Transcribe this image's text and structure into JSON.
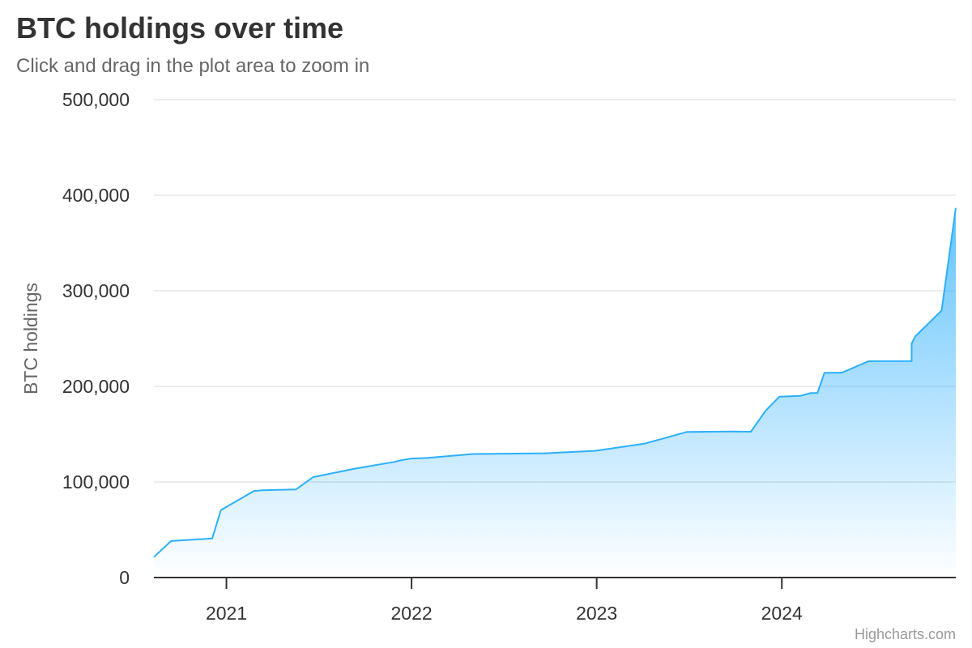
{
  "chart_data": {
    "type": "area",
    "title": "BTC holdings over time",
    "subtitle": "Click and drag in the plot area to zoom in",
    "xlabel": "",
    "ylabel": "BTC holdings",
    "x_axis_type": "datetime",
    "xlim": [
      "2020-08-11",
      "2024-12-09"
    ],
    "ylim": [
      0,
      500000
    ],
    "y_ticks": [
      0,
      100000,
      200000,
      300000,
      400000,
      500000
    ],
    "y_tick_labels": [
      "0",
      "100,000",
      "200,000",
      "300,000",
      "400,000",
      "500,000"
    ],
    "x_ticks": [
      "2021-01-01",
      "2022-01-01",
      "2023-01-01",
      "2024-01-01"
    ],
    "x_tick_labels": [
      "2021",
      "2022",
      "2023",
      "2024"
    ],
    "grid": true,
    "legend": false,
    "series_color": "#2caffe",
    "series": [
      {
        "values": [
          [
            "2020-08-11",
            21454
          ],
          [
            "2020-09-14",
            38250
          ],
          [
            "2020-12-04",
            40824
          ],
          [
            "2020-12-21",
            70470
          ],
          [
            "2021-02-24",
            90531
          ],
          [
            "2021-03-12",
            91326
          ],
          [
            "2021-05-18",
            92079
          ],
          [
            "2021-06-21",
            105085
          ],
          [
            "2021-09-13",
            114042
          ],
          [
            "2021-11-29",
            121044
          ],
          [
            "2021-12-09",
            122478
          ],
          [
            "2021-12-30",
            124391
          ],
          [
            "2022-01-31",
            125051
          ],
          [
            "2022-05-02",
            129218
          ],
          [
            "2022-09-20",
            130000
          ],
          [
            "2022-12-28",
            132500
          ],
          [
            "2023-04-05",
            140000
          ],
          [
            "2023-06-28",
            152333
          ],
          [
            "2023-09-24",
            152800
          ],
          [
            "2023-11-01",
            152500
          ],
          [
            "2023-11-30",
            174530
          ],
          [
            "2023-12-27",
            189150
          ],
          [
            "2024-02-06",
            190000
          ],
          [
            "2024-02-26",
            193000
          ],
          [
            "2024-03-11",
            193000
          ],
          [
            "2024-03-19",
            205000
          ],
          [
            "2024-03-25",
            214246
          ],
          [
            "2024-04-29",
            214400
          ],
          [
            "2024-06-20",
            226331
          ],
          [
            "2024-09-13",
            226500
          ],
          [
            "2024-09-13",
            244800
          ],
          [
            "2024-09-20",
            252220
          ],
          [
            "2024-11-11",
            279420
          ],
          [
            "2024-12-09",
            386700
          ]
        ]
      }
    ]
  },
  "credits": "Highcharts.com"
}
